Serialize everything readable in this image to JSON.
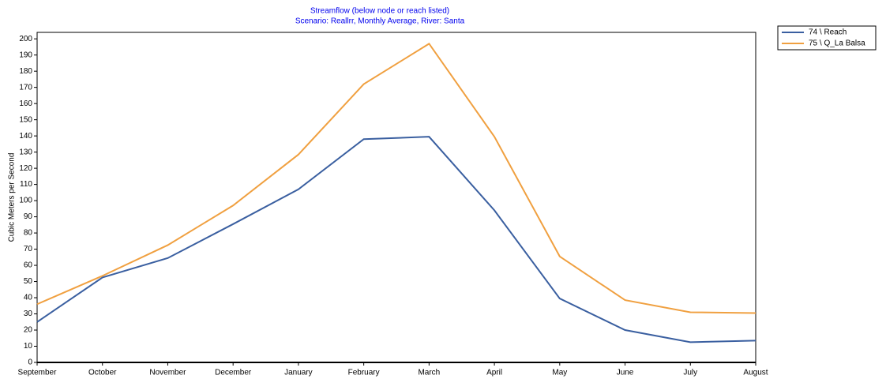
{
  "chart_data": {
    "type": "line",
    "title": "Streamflow (below node or reach listed)",
    "subtitle": "Scenario: Reallrr,  Monthly Average,  River: Santa",
    "y_label": "Cubic Meters per Second",
    "categories": [
      "September",
      "October",
      "November",
      "December",
      "January",
      "February",
      "March",
      "April",
      "May",
      "June",
      "July",
      "August"
    ],
    "series": [
      {
        "name": "74 \\ Reach",
        "color": "#3a5fa0",
        "values": [
          25,
          52.5,
          64.5,
          85.5,
          107,
          138,
          139.5,
          94,
          39.5,
          20,
          12.5,
          13.5
        ]
      },
      {
        "name": "75 \\ Q_La Balsa",
        "color": "#f0a040",
        "values": [
          36,
          53.5,
          72.5,
          97,
          128.5,
          172,
          197,
          139.5,
          65.5,
          38.5,
          31,
          30.5
        ]
      }
    ],
    "ylim": [
      0,
      204
    ],
    "yticks": [
      0,
      10,
      20,
      30,
      40,
      50,
      60,
      70,
      80,
      90,
      100,
      110,
      120,
      130,
      140,
      150,
      160,
      170,
      180,
      190,
      200
    ]
  }
}
